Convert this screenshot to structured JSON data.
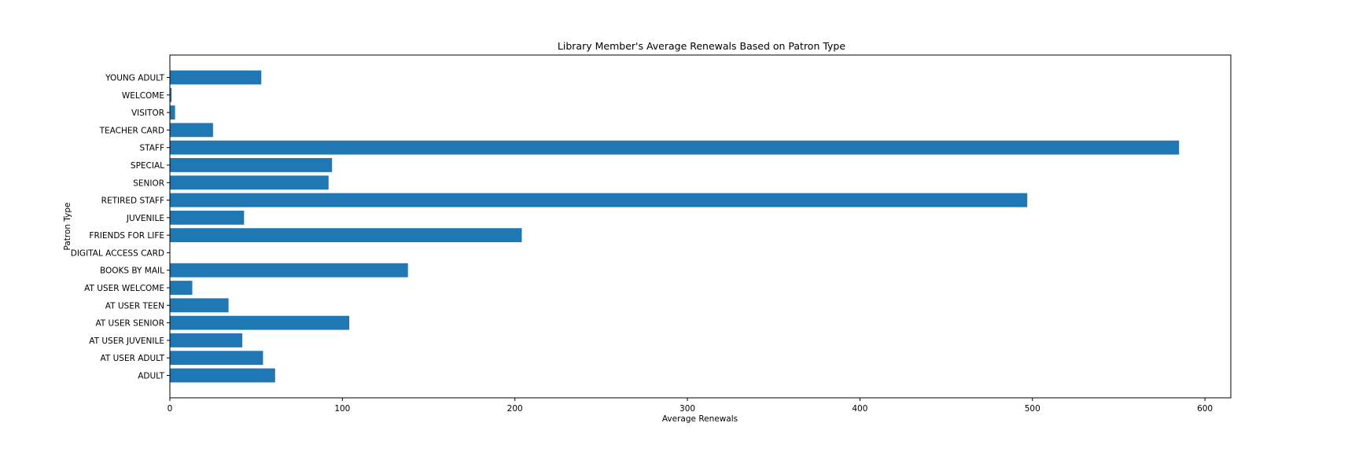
{
  "chart_data": {
    "type": "bar",
    "orientation": "horizontal",
    "title": "Library Member's Average Renewals Based on Patron Type",
    "xlabel": "Average Renewals",
    "ylabel": "Patron Type",
    "xlim": [
      0,
      615
    ],
    "xticks": [
      0,
      100,
      200,
      300,
      400,
      500,
      600
    ],
    "grid": false,
    "legend": "none",
    "bar_color": "#1f77b4",
    "categories": [
      "ADULT",
      "AT USER ADULT",
      "AT USER JUVENILE",
      "AT USER SENIOR",
      "AT USER TEEN",
      "AT USER WELCOME",
      "BOOKS BY MAIL",
      "DIGITAL ACCESS CARD",
      "FRIENDS FOR LIFE",
      "JUVENILE",
      "RETIRED STAFF",
      "SENIOR",
      "SPECIAL",
      "STAFF",
      "TEACHER CARD",
      "VISITOR",
      "WELCOME",
      "YOUNG ADULT"
    ],
    "values": [
      61,
      54,
      42,
      104,
      34,
      13,
      138,
      0,
      204,
      43,
      497,
      92,
      94,
      585,
      25,
      3,
      1,
      53
    ]
  }
}
